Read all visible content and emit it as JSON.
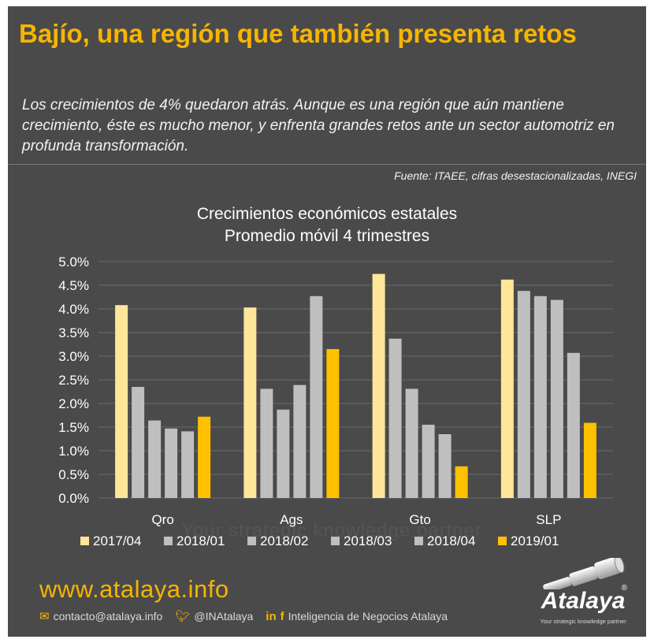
{
  "header": {
    "title": "Bajío, una región que también presenta retos",
    "subtitle": "Los crecimientos de 4% quedaron atrás. Aunque es una región que aún mantiene crecimiento, éste es mucho menor, y enfrenta grandes retos ante un sector automotriz en profunda transformación.",
    "source": "Fuente: ITAEE, cifras desestacionalizadas, INEGI"
  },
  "colors": {
    "background": "#4a4a4a",
    "accent": "#f7b500",
    "series": [
      "#ffe699",
      "#bfbfbf",
      "#bfbfbf",
      "#bfbfbf",
      "#bfbfbf",
      "#ffc000"
    ]
  },
  "chart_data": {
    "type": "bar",
    "title_line1": "Crecimientos económicos estatales",
    "title_line2": "Promedio móvil 4 trimestres",
    "categories": [
      "Qro",
      "Ags",
      "Gto",
      "SLP"
    ],
    "ylim": [
      0,
      5.0
    ],
    "yticks": [
      "0.0%",
      "0.5%",
      "1.0%",
      "1.5%",
      "2.0%",
      "2.5%",
      "3.0%",
      "3.5%",
      "4.0%",
      "4.5%",
      "5.0%"
    ],
    "ytick_values": [
      0,
      0.5,
      1.0,
      1.5,
      2.0,
      2.5,
      3.0,
      3.5,
      4.0,
      4.5,
      5.0
    ],
    "grid": true,
    "legend_position": "bottom",
    "series": [
      {
        "name": "2017/04",
        "values": [
          4.08,
          4.03,
          4.74,
          4.62
        ]
      },
      {
        "name": "2018/01",
        "values": [
          2.35,
          2.31,
          3.37,
          4.38
        ]
      },
      {
        "name": "2018/02",
        "values": [
          1.64,
          1.87,
          2.31,
          4.27
        ]
      },
      {
        "name": "2018/03",
        "values": [
          1.47,
          2.39,
          1.55,
          4.19
        ]
      },
      {
        "name": "2018/04",
        "values": [
          1.41,
          4.27,
          1.35,
          3.07
        ]
      },
      {
        "name": "2019/01",
        "values": [
          1.72,
          3.15,
          0.67,
          1.59
        ]
      }
    ]
  },
  "footer": {
    "url": "www.atalaya.info",
    "email": "contacto@atalaya.info",
    "twitter": "@INAtalaya",
    "social_name": "Inteligencia de Negocios Atalaya",
    "email_icon": "envelope-icon",
    "twitter_icon": "twitter-icon",
    "linkedin_icon": "linkedin-icon",
    "facebook_icon": "facebook-icon"
  },
  "logo": {
    "name": "Atalaya",
    "reg": "®",
    "tagline": "Your strategic knowledge partner",
    "watermark": "Your strategic knowledge partner"
  }
}
